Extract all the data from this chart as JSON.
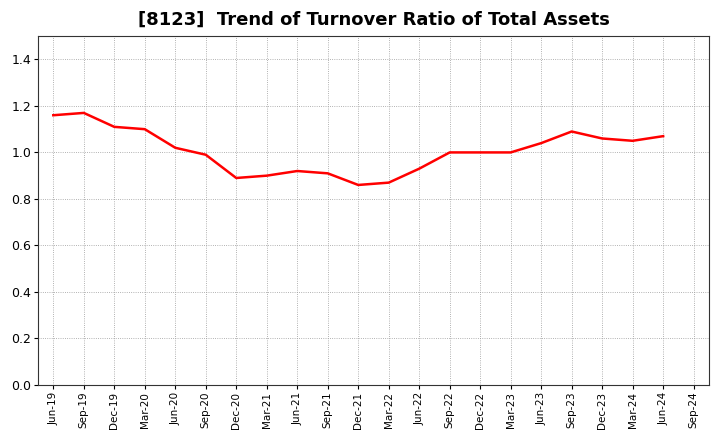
{
  "title": "[8123]  Trend of Turnover Ratio of Total Assets",
  "title_fontsize": 13,
  "line_color": "#FF0000",
  "line_width": 1.8,
  "background_color": "#FFFFFF",
  "grid_color": "#999999",
  "ylim": [
    0.0,
    1.5
  ],
  "yticks": [
    0.0,
    0.2,
    0.4,
    0.6,
    0.8,
    1.0,
    1.2,
    1.4
  ],
  "x_labels": [
    "Jun-19",
    "Sep-19",
    "Dec-19",
    "Mar-20",
    "Jun-20",
    "Sep-20",
    "Dec-20",
    "Mar-21",
    "Jun-21",
    "Sep-21",
    "Dec-21",
    "Mar-22",
    "Jun-22",
    "Sep-22",
    "Dec-22",
    "Mar-23",
    "Jun-23",
    "Sep-23",
    "Dec-23",
    "Mar-24",
    "Jun-24",
    "Sep-24"
  ],
  "values": [
    1.16,
    1.17,
    1.11,
    1.1,
    1.02,
    0.99,
    0.89,
    0.9,
    0.92,
    0.91,
    0.86,
    0.87,
    0.93,
    1.0,
    1.0,
    1.0,
    1.04,
    1.09,
    1.06,
    1.05,
    1.07,
    null
  ]
}
